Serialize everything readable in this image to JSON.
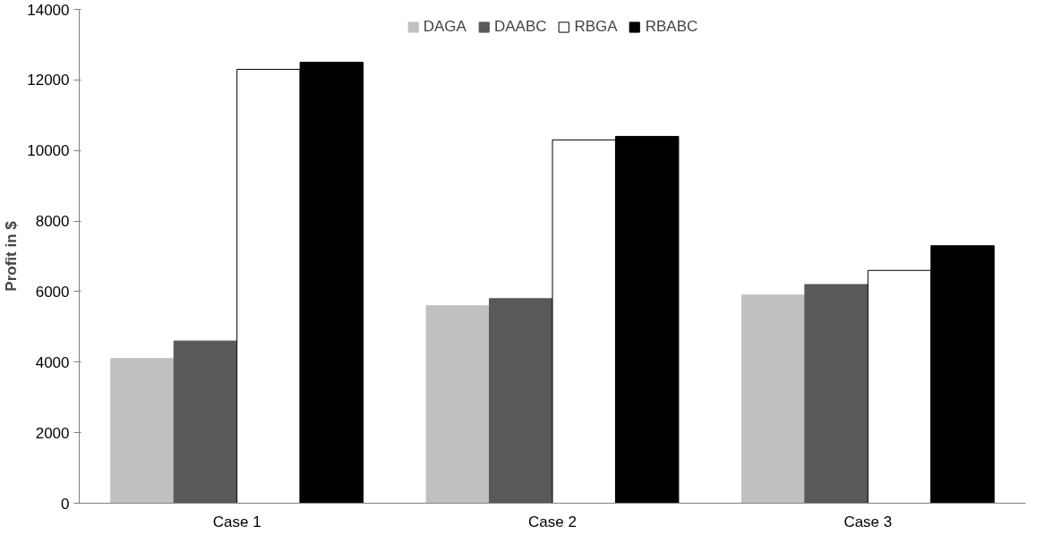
{
  "chart_data": {
    "type": "bar",
    "ylabel": "Profit in $",
    "categories": [
      "Case 1",
      "Case 2",
      "Case 3"
    ],
    "series": [
      {
        "name": "DAGA",
        "color": "#c0c0c0",
        "values": [
          4100,
          5600,
          5900
        ]
      },
      {
        "name": "DAABC",
        "color": "#595959",
        "values": [
          4600,
          5800,
          6200
        ]
      },
      {
        "name": "RBGA",
        "color": "#ffffff",
        "values": [
          12300,
          10300,
          6600
        ]
      },
      {
        "name": "RBABC",
        "color": "#000000",
        "values": [
          12500,
          10400,
          7300
        ]
      }
    ],
    "ylim": [
      0,
      14000
    ],
    "yticks": [
      0,
      2000,
      4000,
      6000,
      8000,
      10000,
      12000,
      14000
    ],
    "grid": false,
    "legend": "top"
  }
}
